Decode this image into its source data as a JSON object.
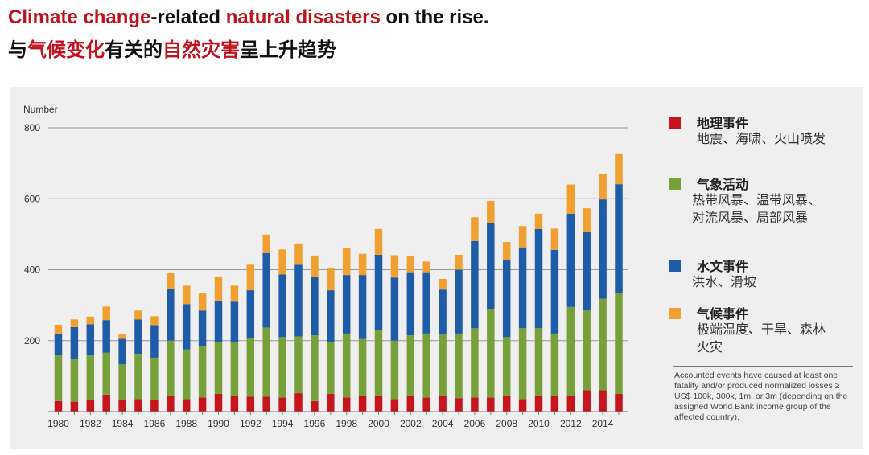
{
  "title_en": {
    "part1": "Climate change",
    "part2": "-related ",
    "part3": "natural disasters",
    "part4": " on the rise."
  },
  "title_zh": {
    "part1": "与",
    "part2": "气候变化",
    "part3": "有关的",
    "part4": "自然灾害",
    "part5": "呈上升趋势"
  },
  "colors": {
    "highlight": "#c0121f",
    "geo": "#c4161c",
    "met": "#77a03a",
    "hyd": "#1f5ca8",
    "cli": "#f0a030"
  },
  "legend": [
    {
      "title": "地理事件",
      "desc": "地震、海啸、火山喷发"
    },
    {
      "title": "气象活动",
      "desc": "热带风暴、温带风暴、对流风暴、局部风暴"
    },
    {
      "title": "水文事件",
      "desc": "洪水、滑坡"
    },
    {
      "title": "气候事件",
      "desc": "极端温度、干旱、森林火灾"
    }
  ],
  "note": "Accounted events have caused at least one fatality and/or produced normalized losses ≥ US$ 100k, 300k, 1m, or 3m (depending on the assigned World Bank income group of the affected country).",
  "chart_data": {
    "type": "bar",
    "stacked": true,
    "ylabel": "Number",
    "ylim": [
      0,
      800
    ],
    "yticks": [
      200,
      400,
      600,
      800
    ],
    "xticks": [
      "1980",
      "1982",
      "1984",
      "1986",
      "1988",
      "1990",
      "1992",
      "1994",
      "1996",
      "1998",
      "2000",
      "2002",
      "2004",
      "2006",
      "2008",
      "2010",
      "2012",
      "2014"
    ],
    "grid": true,
    "categories": [
      "1980",
      "1981",
      "1982",
      "1983",
      "1984",
      "1985",
      "1986",
      "1987",
      "1988",
      "1989",
      "1990",
      "1991",
      "1992",
      "1993",
      "1994",
      "1995",
      "1996",
      "1997",
      "1998",
      "1999",
      "2000",
      "2001",
      "2002",
      "2003",
      "2004",
      "2005",
      "2006",
      "2007",
      "2008",
      "2009",
      "2010",
      "2011",
      "2012",
      "2013",
      "2014",
      "2015"
    ],
    "series": [
      {
        "name": "地理事件",
        "values": [
          30,
          28,
          33,
          48,
          33,
          35,
          32,
          45,
          35,
          40,
          50,
          45,
          42,
          42,
          40,
          52,
          30,
          50,
          40,
          45,
          45,
          35,
          45,
          40,
          45,
          38,
          40,
          40,
          45,
          35,
          45,
          45,
          45,
          60,
          60,
          50
        ]
      },
      {
        "name": "气象活动",
        "values": [
          130,
          120,
          125,
          118,
          100,
          128,
          120,
          155,
          140,
          145,
          145,
          150,
          165,
          195,
          170,
          160,
          185,
          145,
          180,
          160,
          185,
          165,
          170,
          180,
          172,
          182,
          195,
          250,
          165,
          200,
          190,
          175,
          250,
          225,
          258,
          283
        ]
      },
      {
        "name": "水文事件",
        "values": [
          60,
          90,
          88,
          92,
          72,
          97,
          92,
          145,
          128,
          100,
          118,
          115,
          135,
          210,
          177,
          202,
          165,
          147,
          165,
          180,
          212,
          178,
          178,
          173,
          127,
          180,
          246,
          242,
          218,
          228,
          280,
          236,
          263,
          223,
          280,
          308
        ]
      },
      {
        "name": "气候事件",
        "values": [
          25,
          22,
          22,
          38,
          15,
          25,
          25,
          47,
          52,
          48,
          68,
          45,
          72,
          52,
          70,
          60,
          60,
          63,
          75,
          60,
          73,
          63,
          45,
          30,
          30,
          42,
          67,
          62,
          50,
          60,
          43,
          60,
          82,
          65,
          73,
          87
        ]
      }
    ]
  }
}
